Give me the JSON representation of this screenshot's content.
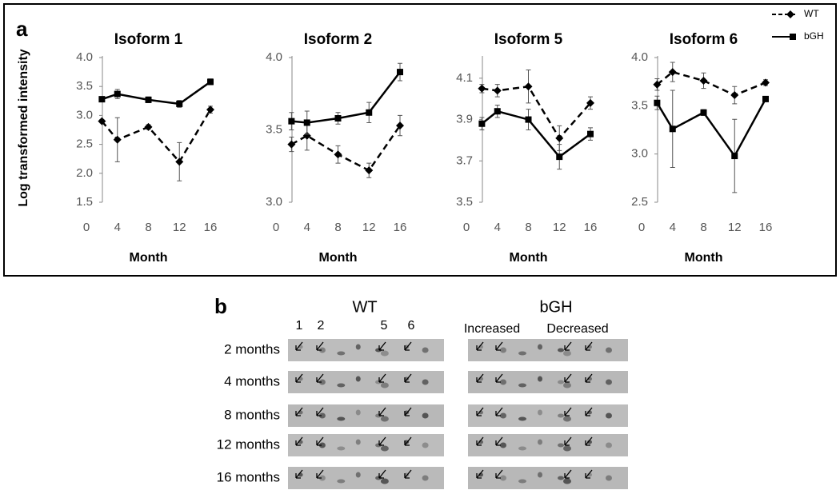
{
  "chart_data": [
    {
      "type": "line",
      "title": "Isoform 1",
      "ylabel": "Log transformed intensity",
      "xlabel": "Month",
      "x": [
        2,
        4,
        8,
        12,
        16
      ],
      "xlim": [
        0,
        16
      ],
      "xticks": [
        0,
        4,
        8,
        12,
        16
      ],
      "ylim": [
        1.5,
        4.0
      ],
      "yticks": [
        1.5,
        {
          "value": 2,
          "label": "2.0"
        },
        2.5,
        {
          "value": 3,
          "label": "3.0"
        },
        3.5,
        {
          "value": 4,
          "label": "4.0"
        }
      ],
      "legend": "upper right",
      "series": [
        {
          "name": "WT",
          "color": "#000000",
          "line_style": "dashed",
          "marker": "diamond",
          "values": [
            2.9,
            2.58,
            2.8,
            2.2,
            3.1
          ],
          "errors": [
            0.03,
            0.38,
            0.04,
            0.33,
            0.06
          ]
        },
        {
          "name": "bGH",
          "color": "#000000",
          "line_style": "solid",
          "marker": "square",
          "values": [
            3.28,
            3.37,
            3.27,
            3.2,
            3.58
          ],
          "errors": [
            0.04,
            0.08,
            0.05,
            0.06,
            0.05
          ]
        }
      ]
    },
    {
      "type": "line",
      "title": "Isoform 2",
      "xlabel": "Month",
      "x": [
        2,
        4,
        8,
        12,
        16
      ],
      "xlim": [
        0,
        16
      ],
      "xticks": [
        0,
        4,
        8,
        12,
        16
      ],
      "ylim": [
        3.0,
        4.0
      ],
      "yticks": [
        {
          "value": 3,
          "label": "3.0"
        },
        3.5,
        {
          "value": 4,
          "label": "4.0"
        }
      ],
      "series": [
        {
          "name": "WT",
          "color": "#000000",
          "line_style": "dashed",
          "marker": "diamond",
          "values": [
            3.4,
            3.46,
            3.33,
            3.22,
            3.53
          ],
          "errors": [
            0.05,
            0.1,
            0.06,
            0.05,
            0.07
          ]
        },
        {
          "name": "bGH",
          "color": "#000000",
          "line_style": "solid",
          "marker": "square",
          "values": [
            3.56,
            3.55,
            3.58,
            3.62,
            3.9
          ],
          "errors": [
            0.06,
            0.08,
            0.04,
            0.07,
            0.06
          ]
        }
      ]
    },
    {
      "type": "line",
      "title": "Isoform 5",
      "xlabel": "Month",
      "x": [
        2,
        4,
        8,
        12,
        16
      ],
      "xlim": [
        0,
        16
      ],
      "xticks": [
        0,
        4,
        8,
        12,
        16
      ],
      "ylim": [
        3.5,
        4.2
      ],
      "yticks": [
        3.5,
        3.7,
        3.9,
        4.1
      ],
      "series": [
        {
          "name": "WT",
          "color": "#000000",
          "line_style": "dashed",
          "marker": "diamond",
          "values": [
            4.05,
            4.04,
            4.06,
            3.81,
            3.98
          ],
          "errors": [
            0.02,
            0.03,
            0.08,
            0.06,
            0.03
          ]
        },
        {
          "name": "bGH",
          "color": "#000000",
          "line_style": "solid",
          "marker": "square",
          "values": [
            3.88,
            3.94,
            3.9,
            3.72,
            3.83
          ],
          "errors": [
            0.03,
            0.03,
            0.05,
            0.06,
            0.03
          ]
        }
      ]
    },
    {
      "type": "line",
      "title": "Isoform 6",
      "xlabel": "Month",
      "x": [
        2,
        4,
        8,
        12,
        16
      ],
      "xlim": [
        0,
        16
      ],
      "xticks": [
        0,
        4,
        8,
        12,
        16
      ],
      "ylim": [
        2.5,
        4.0
      ],
      "yticks": [
        2.5,
        {
          "value": 3,
          "label": "3.0"
        },
        3.5,
        {
          "value": 4,
          "label": "4.0"
        }
      ],
      "series": [
        {
          "name": "WT",
          "color": "#000000",
          "line_style": "dashed",
          "marker": "diamond",
          "values": [
            3.72,
            3.85,
            3.76,
            3.61,
            3.74
          ],
          "errors": [
            0.06,
            0.1,
            0.08,
            0.09,
            0.03
          ]
        },
        {
          "name": "bGH",
          "color": "#000000",
          "line_style": "solid",
          "marker": "square",
          "values": [
            3.53,
            3.26,
            3.43,
            2.98,
            3.57
          ],
          "errors": [
            0.07,
            0.4,
            0.03,
            0.38,
            0.02
          ]
        }
      ]
    }
  ],
  "panel_a": {
    "label": "a"
  },
  "panel_b": {
    "label": "b",
    "wt_title": "WT",
    "bgh_title": "bGH",
    "wt_lanes": [
      "1",
      "2",
      "5",
      "6"
    ],
    "bgh_labels": [
      "Increased",
      "Decreased"
    ],
    "rows": [
      "2 months",
      "4 months",
      "8 months",
      "12 months",
      "16 months"
    ]
  }
}
